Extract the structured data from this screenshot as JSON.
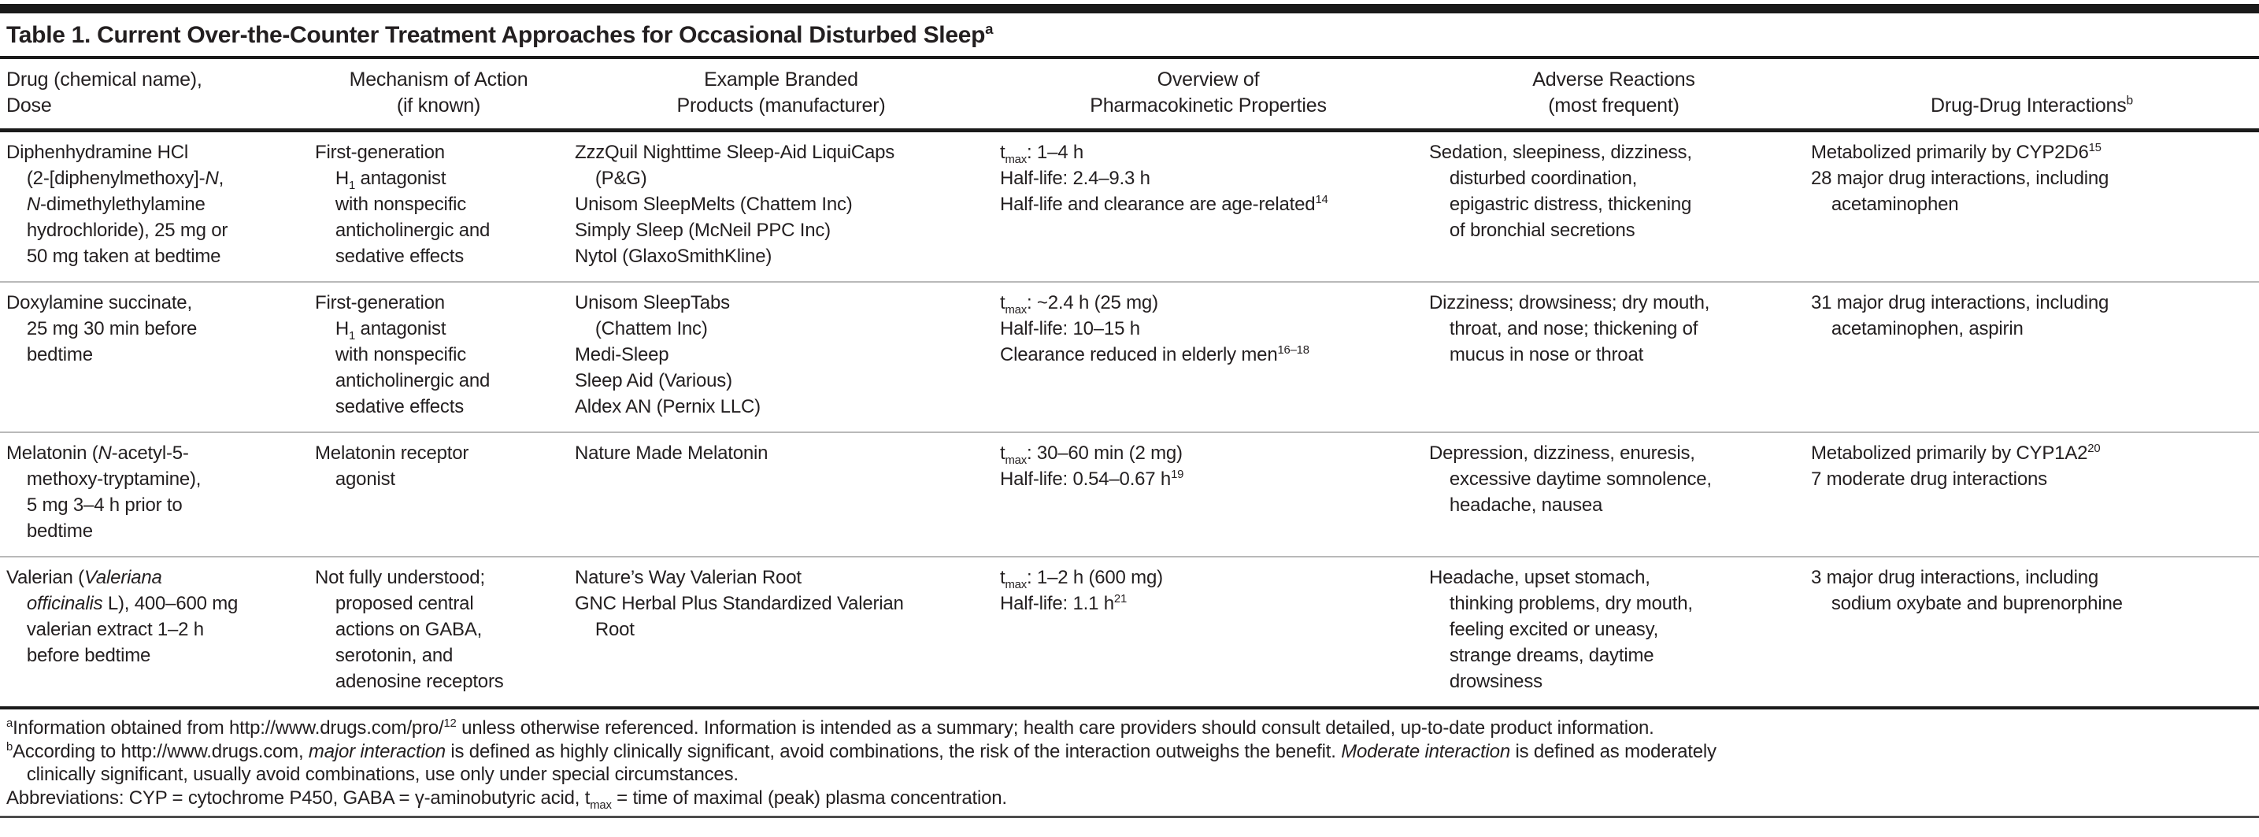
{
  "title": "Table 1. Current Over-the-Counter Treatment Approaches for Occasional Disturbed Sleep^{a}",
  "columns": [
    {
      "key": "drug",
      "label": [
        "Drug (chemical name),",
        "Dose"
      ]
    },
    {
      "key": "mechanism",
      "label": [
        "Mechanism of Action",
        "(if known)"
      ]
    },
    {
      "key": "products",
      "label": [
        "Example Branded",
        "Products (manufacturer)"
      ]
    },
    {
      "key": "pharmacokinetics",
      "label": [
        "Overview of",
        "Pharmacokinetic Properties"
      ]
    },
    {
      "key": "adverse_reactions",
      "label": [
        "Adverse Reactions",
        "(most frequent)"
      ]
    },
    {
      "key": "drug_interactions",
      "label": [
        "Drug-Drug Interactions^{b}"
      ]
    }
  ],
  "rows": [
    {
      "drug": [
        "Diphenhydramine HCl",
        "    (2-[diphenylmethoxy]-*N*,",
        "    *N*-dimethylethylamine",
        "    hydrochloride), 25 mg or",
        "    50 mg taken at bedtime"
      ],
      "mechanism": [
        "First-generation",
        "    H_{1} antagonist",
        "    with nonspecific",
        "    anticholinergic and",
        "    sedative effects"
      ],
      "products": [
        "ZzzQuil Nighttime Sleep-Aid LiquiCaps",
        "    (P&G)",
        "Unisom SleepMelts (Chattem Inc)",
        "Simply Sleep (McNeil PPC Inc)",
        "Nytol (GlaxoSmithKline)"
      ],
      "pharmacokinetics": [
        "t_{max}: 1–4 h",
        "Half-life: 2.4–9.3 h",
        "Half-life and clearance are age-related^{14}"
      ],
      "adverse_reactions": [
        "Sedation, sleepiness, dizziness,",
        "    disturbed coordination,",
        "    epigastric distress, thickening",
        "    of bronchial secretions"
      ],
      "drug_interactions": [
        "Metabolized primarily by CYP2D6^{15}",
        "28 major drug interactions, including",
        "    acetaminophen"
      ]
    },
    {
      "drug": [
        "Doxylamine succinate,",
        "    25 mg 30 min before",
        "    bedtime"
      ],
      "mechanism": [
        "First-generation",
        "    H_{1} antagonist",
        "    with nonspecific",
        "    anticholinergic and",
        "    sedative effects"
      ],
      "products": [
        "Unisom SleepTabs",
        "    (Chattem Inc)",
        "Medi-Sleep",
        "Sleep Aid (Various)",
        "Aldex AN (Pernix LLC)"
      ],
      "pharmacokinetics": [
        "t_{max}: ~2.4 h (25 mg)",
        "Half-life: 10–15 h",
        "Clearance reduced in elderly men^{16–18}"
      ],
      "adverse_reactions": [
        "Dizziness; drowsiness; dry mouth,",
        "    throat, and nose; thickening of",
        "    mucus in nose or throat"
      ],
      "drug_interactions": [
        "31 major drug interactions, including",
        "    acetaminophen, aspirin"
      ]
    },
    {
      "drug": [
        "Melatonin (*N*-acetyl-5-",
        "    methoxy-tryptamine),",
        "    5 mg 3–4 h prior to",
        "    bedtime"
      ],
      "mechanism": [
        "Melatonin receptor",
        "    agonist"
      ],
      "products": [
        "Nature Made Melatonin"
      ],
      "pharmacokinetics": [
        "t_{max}: 30–60 min (2 mg)",
        "Half-life: 0.54–0.67 h^{19}"
      ],
      "adverse_reactions": [
        "Depression, dizziness, enuresis,",
        "    excessive daytime somnolence,",
        "    headache, nausea"
      ],
      "drug_interactions": [
        "Metabolized primarily by CYP1A2^{20}",
        "7 moderate drug interactions"
      ]
    },
    {
      "drug": [
        "Valerian (*Valeriana*",
        "    *officinalis* L), 400–600 mg",
        "    valerian extract 1–2 h",
        "    before bedtime"
      ],
      "mechanism": [
        "Not fully understood;",
        "    proposed central",
        "    actions on GABA,",
        "    serotonin, and",
        "    adenosine receptors"
      ],
      "products": [
        "Nature’s Way Valerian Root",
        "GNC Herbal Plus Standardized Valerian",
        "    Root"
      ],
      "pharmacokinetics": [
        "t_{max}: 1–2 h (600 mg)",
        "Half-life: 1.1 h^{21}"
      ],
      "adverse_reactions": [
        "Headache, upset stomach,",
        "    thinking problems, dry mouth,",
        "    feeling excited or uneasy,",
        "    strange dreams, daytime",
        "    drowsiness"
      ],
      "drug_interactions": [
        "3 major drug interactions, including",
        "    sodium oxybate and buprenorphine"
      ]
    }
  ],
  "footnotes": {
    "a": [
      "^{a}Information obtained from http://www.drugs.com/pro/^{12} unless otherwise referenced. Information is intended as a summary; health care providers should consult detailed, up-to-date product information."
    ],
    "b": [
      "^{b}According to http://www.drugs.com, *major interaction* is defined as highly clinically significant, avoid combinations, the risk of the interaction outweighs the benefit. *Moderate interaction* is defined as moderately",
      "    clinically significant, usually avoid combinations, use only under special circumstances."
    ],
    "abbreviations": [
      "Abbreviations: CYP = cytochrome P450, GABA = γ-aminobutyric acid, t_{max} = time of maximal (peak) plasma concentration."
    ]
  },
  "colors": {
    "text": "#231f20",
    "heavy_rule": "#1a1a1a",
    "row_separator": "#b9b9b9",
    "bottom_rule": "#4d4d4d"
  }
}
